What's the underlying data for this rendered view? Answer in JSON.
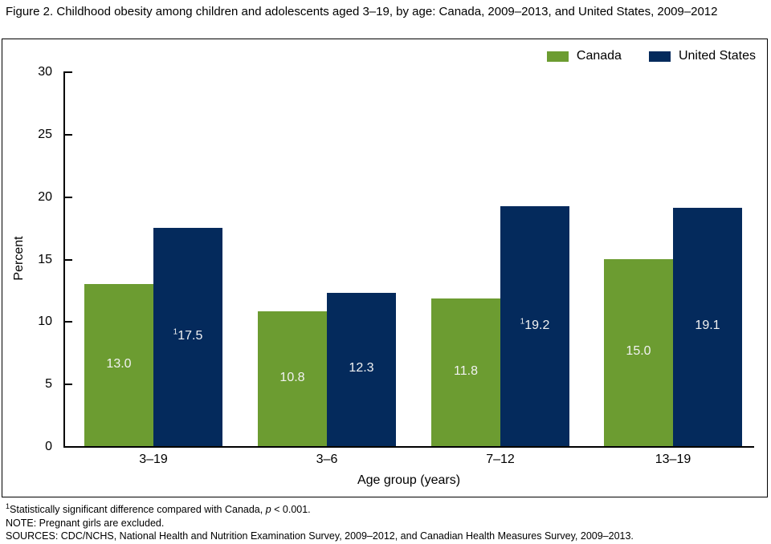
{
  "figure": {
    "title": "Figure 2. Childhood obesity among children and adolescents aged 3–19, by age: Canada, 2009–2013, and United States, 2009–2012"
  },
  "chart_data": {
    "type": "bar",
    "title": "Childhood obesity among children and adolescents aged 3–19, by age: Canada, 2009–2013, and United States, 2009–2012",
    "categories": [
      "3–19",
      "3–6",
      "7–12",
      "13–19"
    ],
    "series": [
      {
        "name": "Canada",
        "color": "#6c9c31",
        "values": [
          13.0,
          10.8,
          11.8,
          15.0
        ],
        "value_labels": [
          {
            "sup": "",
            "text": "13.0"
          },
          {
            "sup": "",
            "text": "10.8"
          },
          {
            "sup": "",
            "text": "11.8"
          },
          {
            "sup": "",
            "text": "15.0"
          }
        ]
      },
      {
        "name": "United States",
        "color": "#042a5c",
        "values": [
          17.5,
          12.3,
          19.2,
          19.1
        ],
        "value_labels": [
          {
            "sup": "1",
            "text": "17.5"
          },
          {
            "sup": "",
            "text": "12.3"
          },
          {
            "sup": "1",
            "text": "19.2"
          },
          {
            "sup": "",
            "text": "19.1"
          }
        ]
      }
    ],
    "xlabel": "Age group (years)",
    "ylabel": "Percent",
    "ylim": [
      0,
      30
    ],
    "yticks": [
      0,
      5,
      10,
      15,
      20,
      25,
      30
    ],
    "grid": false,
    "legend_position": "top-right",
    "value_label_color": "#f2f2f2",
    "axis_color": "#000000"
  },
  "footnotes": {
    "line1": {
      "sup": "1",
      "text_before_italic": "Statistically significant difference compared with Canada, ",
      "italic": "p",
      "text_after_italic": " < 0.001."
    },
    "line2": "NOTE: Pregnant girls are excluded.",
    "line3": "SOURCES: CDC/NCHS, National Health and Nutrition Examination Survey, 2009–2012, and Canadian Health Measures Survey, 2009–2013."
  }
}
